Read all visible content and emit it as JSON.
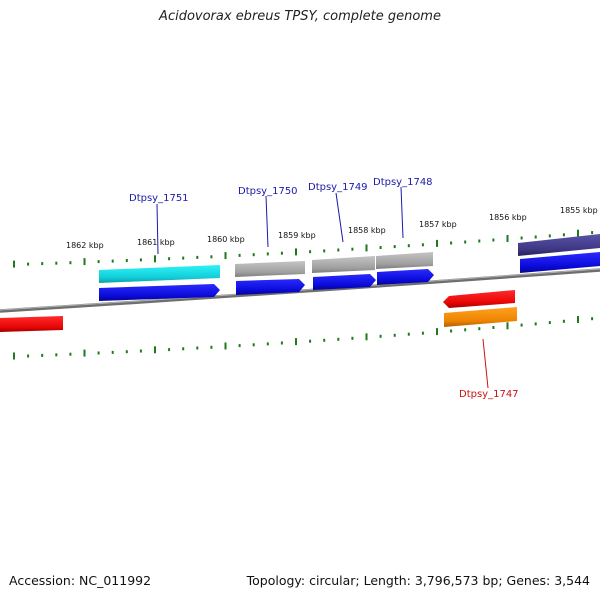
{
  "title": "Acidovorax ebreus TPSY, complete genome",
  "footer": {
    "accession": "Accession: NC_011992",
    "summary": "Topology: circular; Length: 3,796,573 bp; Genes: 3,544"
  },
  "scale_ticks": [
    "1862 kbp",
    "1861 kbp",
    "1860 kbp",
    "1859 kbp",
    "1858 kbp",
    "1857 kbp",
    "1856 kbp",
    "1855 kbp"
  ],
  "gene_labels": [
    {
      "text": "Dtpsy_1751",
      "color": "#1a1aa8"
    },
    {
      "text": "Dtpsy_1750",
      "color": "#1a1aa8"
    },
    {
      "text": "Dtpsy_1749",
      "color": "#1a1aa8"
    },
    {
      "text": "Dtpsy_1748",
      "color": "#1a1aa8"
    },
    {
      "text": "Dtpsy_1747",
      "color": "#cc1111"
    }
  ],
  "colors": {
    "cyan_feature": "#22e0e8",
    "grey_feature": "#a8a8a8",
    "blue_feature": "#1010e0",
    "navy_feature": "#403a8a",
    "red_feature": "#ee0a0a",
    "orange_feature": "#f08a00",
    "backbone": "#7a7a7a",
    "tick_green": "#1f7a1f"
  }
}
